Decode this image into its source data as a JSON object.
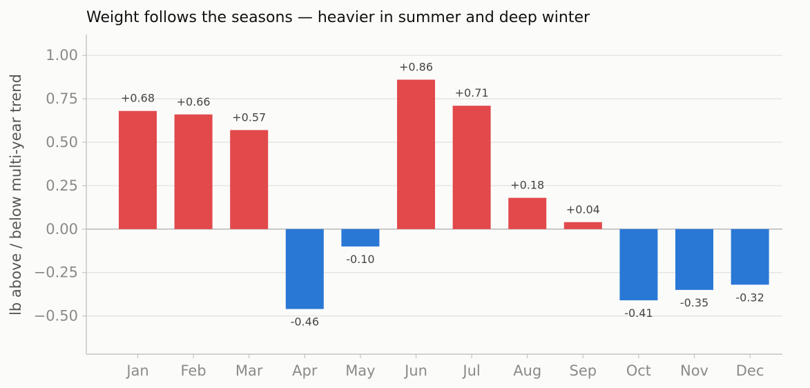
{
  "chart_data": {
    "type": "bar",
    "title": "Weight follows the seasons — heavier in summer and deep winter",
    "xlabel": "",
    "ylabel": "lb above / below multi-year trend",
    "categories": [
      "Jan",
      "Feb",
      "Mar",
      "Apr",
      "May",
      "Jun",
      "Jul",
      "Aug",
      "Sep",
      "Oct",
      "Nov",
      "Dec"
    ],
    "values": [
      0.68,
      0.66,
      0.57,
      -0.46,
      -0.1,
      0.86,
      0.71,
      0.18,
      0.04,
      -0.41,
      -0.35,
      -0.32
    ],
    "data_labels": [
      "+0.68",
      "+0.66",
      "+0.57",
      "-0.46",
      "-0.10",
      "+0.86",
      "+0.71",
      "+0.18",
      "+0.04",
      "-0.41",
      "-0.35",
      "-0.32"
    ],
    "ylim": [
      -0.72,
      1.12
    ],
    "yticks": [
      1.0,
      0.75,
      0.5,
      0.25,
      0.0,
      -0.25,
      -0.5
    ],
    "ytick_labels": [
      "1.00",
      "0.75",
      "0.50",
      "0.25",
      "0.00",
      "−0.25",
      "−0.50"
    ],
    "grid": "horizontal",
    "colors": {
      "positive": "#e2494b",
      "negative": "#2a78d6",
      "grid": "#e0e0dc",
      "axis": "#c4c4c0",
      "zero_line": "#bdbdbd",
      "background": "#fbfbf9"
    }
  }
}
